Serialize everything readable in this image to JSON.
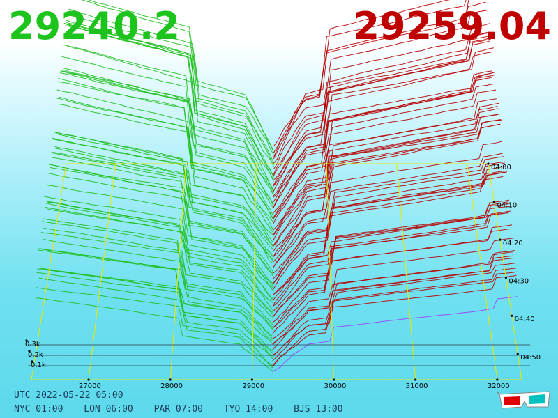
{
  "header": {
    "bid_price": "29240.2",
    "ask_price": "29259.04"
  },
  "footer": {
    "utc": "UTC 2022-05-22 05:00",
    "zones": [
      {
        "label": "NYC 01:00"
      },
      {
        "label": "LON 06:00"
      },
      {
        "label": "PAR 07:00"
      },
      {
        "label": "TYO 14:00"
      },
      {
        "label": "BJS 13:00"
      }
    ]
  },
  "icons": {
    "glasses": "3d-glasses-icon"
  },
  "chart_data": {
    "type": "area",
    "projection": "3d-perspective order book depth",
    "x_ticks": [
      "27000",
      "28000",
      "29000",
      "30000",
      "31000",
      "32000"
    ],
    "y_ticks": [
      "0.1k",
      "0.2k",
      "0.3k"
    ],
    "time_ticks": [
      "04:00",
      "04:10",
      "04:20",
      "04:30",
      "04:40",
      "04:50"
    ],
    "series": [
      {
        "side": "bid",
        "color": "#1fbf1f"
      },
      {
        "side": "ask",
        "color": "#b80000"
      }
    ],
    "mid_price": 29250
  }
}
